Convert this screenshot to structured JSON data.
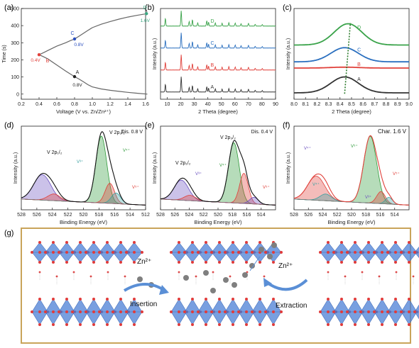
{
  "panel_labels": [
    "(a)",
    "(b)",
    "(c)",
    "(d)",
    "(e)",
    "(f)",
    "(g)"
  ],
  "chart_data": [
    {
      "panel": "(a)",
      "type": "line",
      "xlabel": "Voltage (V vs. Zn/Zn²⁺)",
      "ylabel": "Time (s)",
      "xlim": [
        0.2,
        1.6
      ],
      "ylim": [
        -30,
        500
      ],
      "xticks": [
        0.2,
        0.4,
        0.6,
        0.8,
        1.0,
        1.2,
        1.4,
        1.6
      ],
      "yticks": [
        0,
        100,
        200,
        300,
        400,
        500
      ],
      "series": [
        {
          "color": "#666666",
          "x": [
            1.62,
            1.5,
            1.4,
            1.3,
            1.2,
            1.1,
            1.0,
            0.95,
            0.9,
            0.85,
            0.8,
            0.75,
            0.7,
            0.6,
            0.5,
            0.45,
            0.4
          ],
          "y": [
            0,
            5,
            10,
            16,
            22,
            30,
            42,
            55,
            72,
            88,
            102,
            118,
            135,
            170,
            205,
            218,
            230
          ]
        },
        {
          "color": "#666666",
          "x": [
            0.4,
            0.45,
            0.5,
            0.6,
            0.7,
            0.75,
            0.8,
            0.85,
            0.9,
            0.95,
            1.0,
            1.1,
            1.2,
            1.3,
            1.4,
            1.5,
            1.62
          ],
          "y": [
            230,
            242,
            255,
            280,
            300,
            312,
            322,
            338,
            355,
            372,
            388,
            408,
            424,
            438,
            450,
            460,
            470
          ]
        }
      ],
      "points": [
        {
          "label": "D",
          "value_label": "1.6V",
          "x": 1.61,
          "y": 470,
          "color": "#3aa882"
        },
        {
          "label": "C",
          "value_label": "0.8V",
          "x": 0.8,
          "y": 322,
          "color": "#2a4fbf"
        },
        {
          "label": "B",
          "value_label": "0.4V",
          "x": 0.4,
          "y": 230,
          "color": "#e0403a"
        },
        {
          "label": "A",
          "value_label": "0.8V",
          "x": 0.8,
          "y": 102,
          "color": "#222222"
        }
      ]
    },
    {
      "panel": "(b)",
      "type": "line",
      "xlabel": "2 Theta (degree)",
      "ylabel": "Intensity (a.u.)",
      "xlim": [
        5,
        90
      ],
      "xticks": [
        10,
        20,
        30,
        40,
        50,
        60,
        70,
        80,
        90
      ],
      "peaks": [
        [
          8.6,
          0.5
        ],
        [
          20.3,
          1.0
        ],
        [
          26.2,
          0.3
        ],
        [
          28.6,
          0.4
        ],
        [
          32.5,
          0.2
        ],
        [
          39.2,
          0.35
        ],
        [
          40.5,
          0.25
        ],
        [
          45.5,
          0.2
        ],
        [
          50.5,
          0.18
        ],
        [
          55.5,
          0.22
        ],
        [
          60.2,
          0.2
        ],
        [
          64.5,
          0.15
        ],
        [
          70.0,
          0.18
        ],
        [
          75.0,
          0.12
        ],
        [
          80.2,
          0.1
        ]
      ],
      "series": [
        {
          "name": "A",
          "color": "#333333",
          "offset": 0
        },
        {
          "name": "B",
          "color": "#e0403a",
          "offset": 1
        },
        {
          "name": "C",
          "color": "#2a6fbf",
          "offset": 2
        },
        {
          "name": "D",
          "color": "#3aa34a",
          "offset": 3
        }
      ]
    },
    {
      "panel": "(c)",
      "type": "line",
      "xlabel": "2 Theta (degree)",
      "ylabel": "Intensity (a.u.)",
      "xlim": [
        8.0,
        9.0
      ],
      "xticks": [
        8.0,
        8.1,
        8.2,
        8.3,
        8.4,
        8.5,
        8.6,
        8.7,
        8.8,
        8.9,
        9.0
      ],
      "series": [
        {
          "name": "A",
          "color": "#333333",
          "center": 8.44,
          "height": 0.9,
          "base": 0.2
        },
        {
          "name": "B",
          "color": "#e0403a",
          "center": 8.44,
          "height": 0.05,
          "base": 1.6
        },
        {
          "name": "C",
          "color": "#2a6fbf",
          "center": 8.44,
          "height": 0.8,
          "base": 1.95
        },
        {
          "name": "D",
          "color": "#3aa34a",
          "center": 8.47,
          "height": 1.2,
          "base": 2.9
        }
      ],
      "trend_line": {
        "x": [
          8.44,
          8.49
        ],
        "color": "#2a7a2a"
      }
    },
    {
      "panel": "(d)",
      "type": "line",
      "title": "Dis. 0.8 V",
      "xlabel": "Binding Energy (eV)",
      "ylabel": "Intensity (a.u.)",
      "xlim": [
        528,
        512
      ],
      "xticks": [
        528,
        526,
        524,
        522,
        520,
        518,
        516,
        514,
        512
      ],
      "annotations": [
        "V 2p₃/₂",
        "V 2p₁/₂",
        "V⁴⁺",
        "V³⁺",
        "V⁵⁺"
      ],
      "components": [
        {
          "center": 517.7,
          "height": 1.0,
          "width": 0.7,
          "color": "#2f9a3a"
        },
        {
          "center": 516.6,
          "height": 0.3,
          "width": 0.6,
          "color": "#e0403a"
        },
        {
          "center": 515.8,
          "height": 0.16,
          "width": 0.6,
          "color": "#3aa0a0"
        },
        {
          "center": 525.3,
          "height": 0.38,
          "width": 1.1,
          "color": "#6a4fbf"
        },
        {
          "center": 523.8,
          "height": 0.1,
          "width": 0.8,
          "color": "#e0403a"
        }
      ]
    },
    {
      "panel": "(e)",
      "type": "line",
      "title": "Dis. 0.4 V",
      "xlabel": "Binding Energy (eV)",
      "ylabel": "Intensity (a.u.)",
      "xlim": [
        528,
        512
      ],
      "xticks": [
        528,
        526,
        524,
        522,
        520,
        518,
        516,
        514
      ],
      "annotations": [
        "V 2p₃/₂",
        "V 2p₁/₂",
        "V⁴⁺",
        "V³⁺",
        "V⁵⁺"
      ],
      "components": [
        {
          "center": 517.8,
          "height": 0.9,
          "width": 0.75,
          "color": "#2f9a3a"
        },
        {
          "center": 516.4,
          "height": 0.45,
          "width": 0.6,
          "color": "#e0403a"
        },
        {
          "center": 515.0,
          "height": 0.1,
          "width": 0.6,
          "color": "#6a4fbf"
        },
        {
          "center": 525.1,
          "height": 0.3,
          "width": 1.0,
          "color": "#6a4fbf"
        },
        {
          "center": 523.9,
          "height": 0.08,
          "width": 0.8,
          "color": "#e0403a"
        }
      ]
    },
    {
      "panel": "(f)",
      "type": "line",
      "title": "Char. 1.6 V",
      "xlabel": "Binding Energy (eV)",
      "ylabel": "Intensity (a.u.)",
      "xlim": [
        528,
        512
      ],
      "xticks": [
        528,
        526,
        524,
        522,
        520,
        518,
        516,
        514
      ],
      "annotations": [
        "V⁵⁺",
        "V⁴⁺",
        "V⁵⁺",
        "V⁴⁺",
        "V³⁺"
      ],
      "components": [
        {
          "center": 517.4,
          "height": 1.0,
          "width": 0.9,
          "color": "#2f9a3a"
        },
        {
          "center": 515.9,
          "height": 0.18,
          "width": 0.6,
          "color": "#e0403a"
        },
        {
          "center": 514.8,
          "height": 0.1,
          "width": 0.5,
          "color": "#3aa0a0"
        },
        {
          "center": 524.9,
          "height": 0.36,
          "width": 1.2,
          "color": "#e0403a"
        },
        {
          "center": 523.6,
          "height": 0.1,
          "width": 0.8,
          "color": "#3aa0a0"
        }
      ]
    }
  ],
  "schematic": {
    "panel": "(g)",
    "labels": {
      "ion_left": "Zn²⁺",
      "ion_right": "Zn²⁺",
      "insertion": "Insertion",
      "extraction": "Extraction"
    },
    "colors": {
      "frame": "#c9a45a",
      "octahedron": "#4b7fd6",
      "oxygen": "#e03b3b",
      "zinc": "#7f7f7f",
      "arrow": "#5a8fd6"
    }
  }
}
